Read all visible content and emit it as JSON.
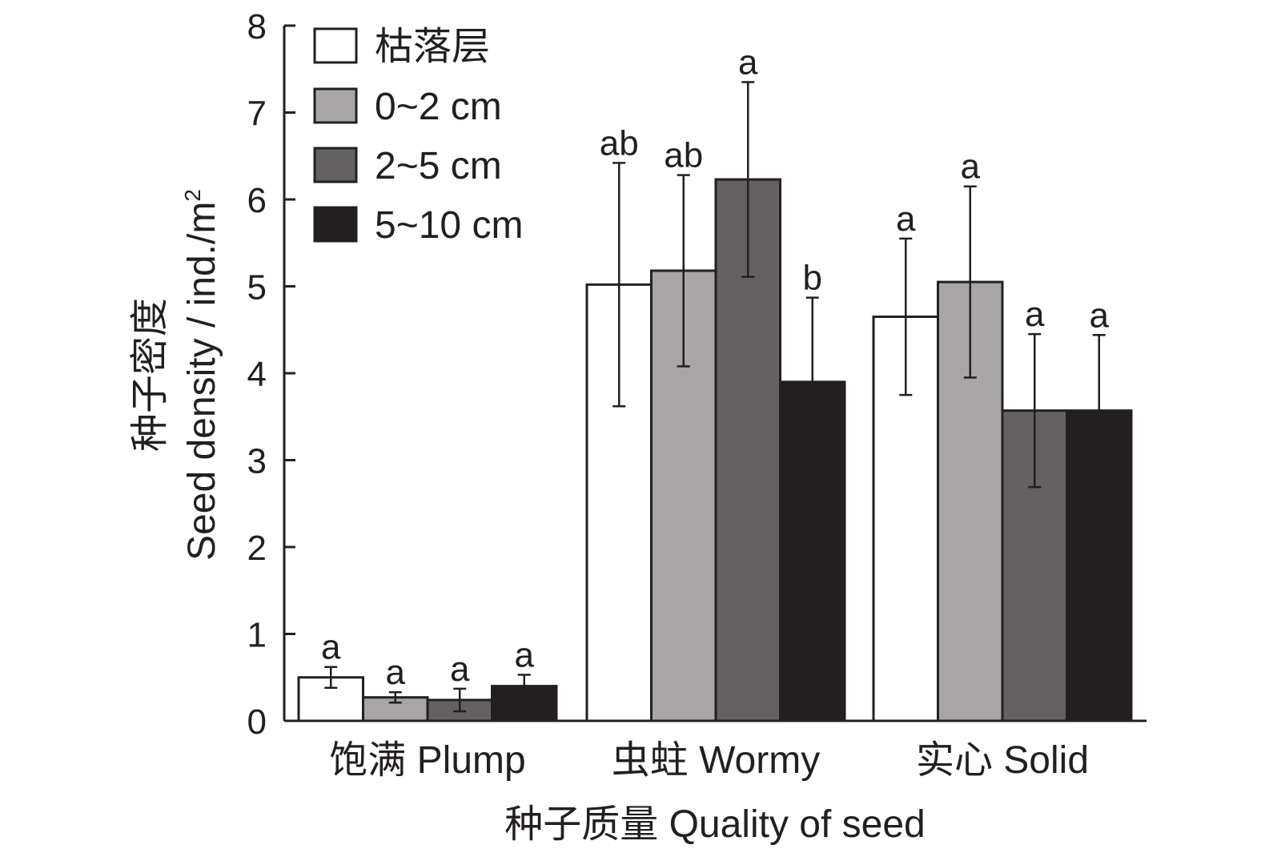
{
  "chart_data": {
    "type": "bar",
    "xlabel": "种子质量 Quality of seed",
    "ylabel_zh": "种子密度",
    "ylabel_en": "Seed density / ind./m",
    "ylabel_sup": "2",
    "ylim": [
      0,
      8
    ],
    "yticks": [
      "0",
      "1",
      "2",
      "3",
      "4",
      "5",
      "6",
      "7",
      "8"
    ],
    "legend_position": "top-left",
    "categories": [
      "饱满 Plump",
      "虫蛀 Wormy",
      "实心 Solid"
    ],
    "series": [
      {
        "name": "枯落层",
        "color": "#ffffff",
        "values": [
          0.5,
          5.02,
          4.65
        ],
        "err": [
          0.12,
          1.4,
          0.9
        ],
        "letters": [
          "a",
          "ab",
          "a"
        ]
      },
      {
        "name": "0~2 cm",
        "color": "#a7a5a6",
        "values": [
          0.27,
          5.18,
          5.05
        ],
        "err": [
          0.06,
          1.1,
          1.1
        ],
        "letters": [
          "a",
          "ab",
          "a"
        ]
      },
      {
        "name": "2~5 cm",
        "color": "#636162",
        "values": [
          0.24,
          6.23,
          3.57
        ],
        "err": [
          0.13,
          1.12,
          0.88
        ],
        "letters": [
          "a",
          "a",
          "a"
        ]
      },
      {
        "name": "5~10 cm",
        "color": "#231f20",
        "values": [
          0.4,
          3.9,
          3.57
        ],
        "err": [
          0.13,
          0.97,
          0.87
        ],
        "letters": [
          "a",
          "b",
          "a"
        ]
      }
    ]
  }
}
